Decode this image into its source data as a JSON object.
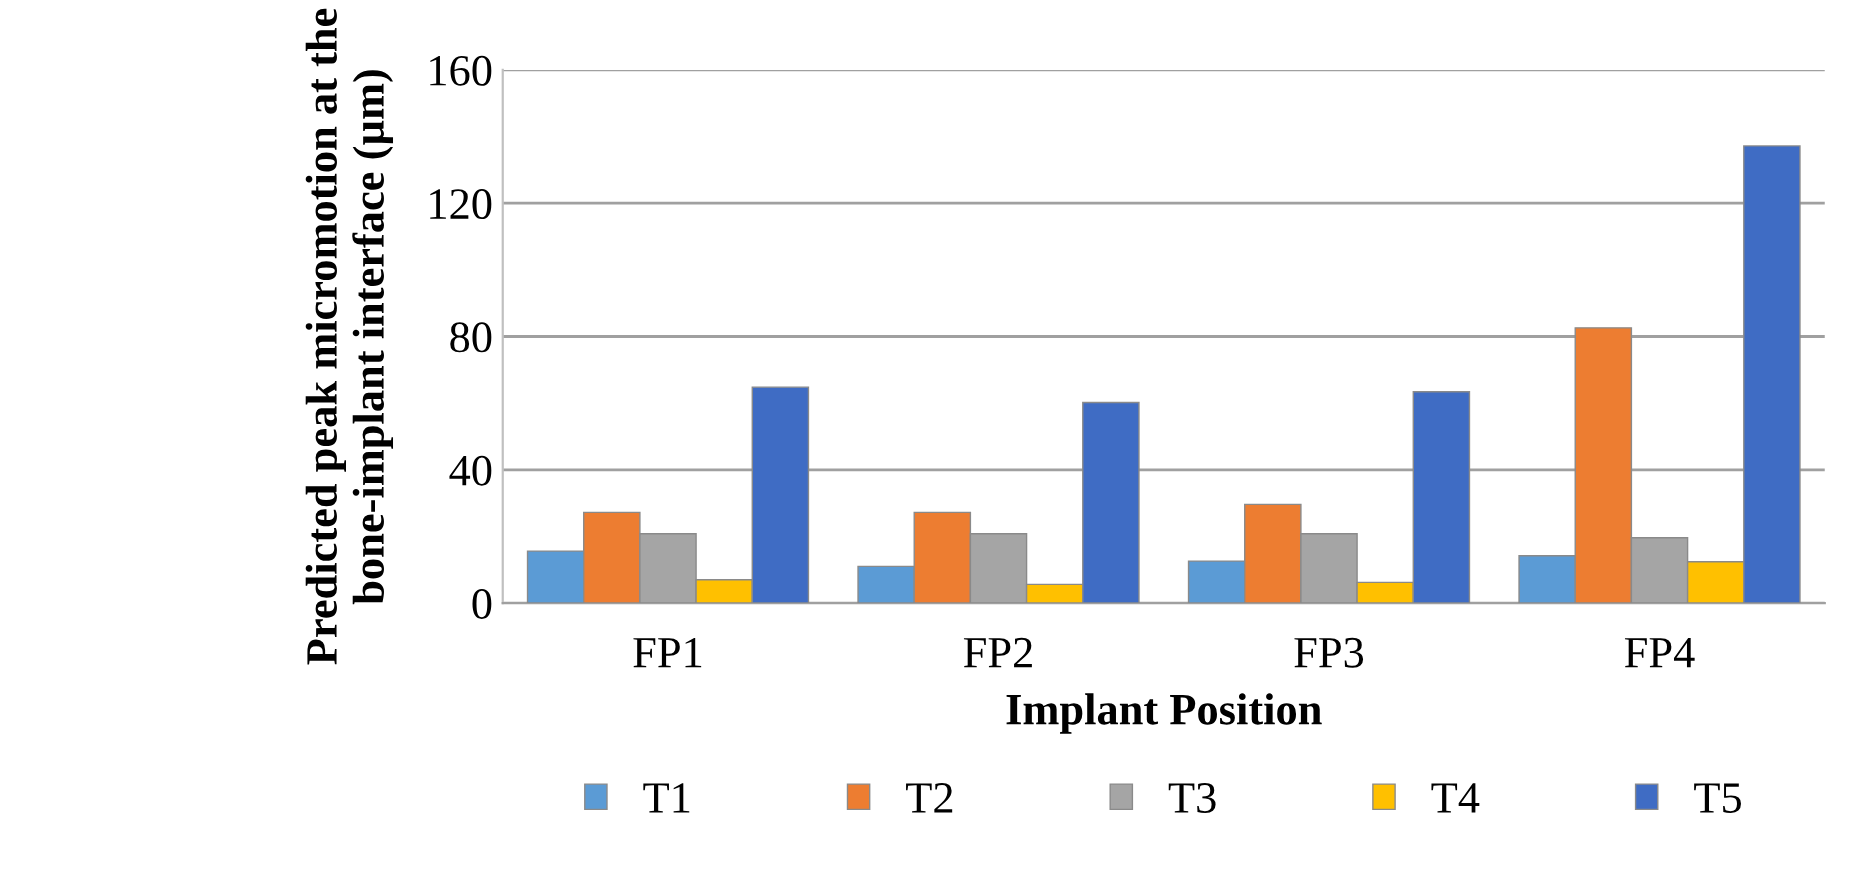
{
  "chart_data": {
    "type": "bar",
    "xlabel": "Implant Position",
    "ylabel": "Predicted peak micromotion at the bone-implant interface (µm)",
    "categories": [
      "FP1",
      "FP2",
      "FP3",
      "FP4"
    ],
    "series": [
      {
        "name": "T1",
        "color": "#5b9bd5",
        "values": [
          15.6,
          11,
          12.6,
          14.2
        ]
      },
      {
        "name": "T2",
        "color": "#ed7d31",
        "values": [
          27.2,
          27.2,
          29.6,
          82.6
        ]
      },
      {
        "name": "T3",
        "color": "#a5a5a5",
        "values": [
          20.8,
          20.8,
          20.8,
          19.6
        ]
      },
      {
        "name": "T4",
        "color": "#ffc000",
        "values": [
          7,
          5.6,
          6.2,
          12.4
        ]
      },
      {
        "name": "T5",
        "color": "#3f6cc4",
        "values": [
          64.8,
          60.2,
          63.4,
          137.2
        ]
      }
    ],
    "ylim": [
      0,
      160
    ],
    "yticks": [
      0,
      40,
      80,
      120,
      160
    ],
    "grid": "y",
    "legend": "bottom"
  }
}
